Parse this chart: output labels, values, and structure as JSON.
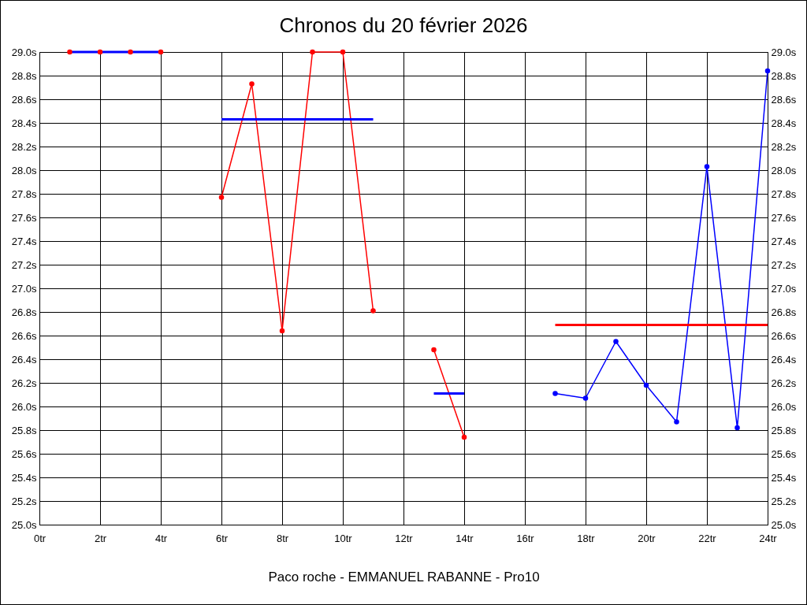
{
  "chart_data": {
    "type": "line",
    "title": "Chronos du 20 février 2026",
    "xlabel": "Paco roche - EMMANUEL RABANNE - Pro10",
    "xlim": [
      0,
      24
    ],
    "xticks": [
      {
        "value": 0,
        "label": "0tr"
      },
      {
        "value": 2,
        "label": "2tr"
      },
      {
        "value": 4,
        "label": "4tr"
      },
      {
        "value": 6,
        "label": "6tr"
      },
      {
        "value": 8,
        "label": "8tr"
      },
      {
        "value": 10,
        "label": "10tr"
      },
      {
        "value": 12,
        "label": "12tr"
      },
      {
        "value": 14,
        "label": "14tr"
      },
      {
        "value": 16,
        "label": "16tr"
      },
      {
        "value": 18,
        "label": "18tr"
      },
      {
        "value": 20,
        "label": "20tr"
      },
      {
        "value": 22,
        "label": "22tr"
      },
      {
        "value": 24,
        "label": "24tr"
      }
    ],
    "ylim": [
      25,
      29
    ],
    "yticks": [
      {
        "value": 25,
        "label": "25.0s"
      },
      {
        "value": 25.2,
        "label": "25.2s"
      },
      {
        "value": 25.4,
        "label": "25.4s"
      },
      {
        "value": 25.6,
        "label": "25.6s"
      },
      {
        "value": 25.8,
        "label": "25.8s"
      },
      {
        "value": 26,
        "label": "26.0s"
      },
      {
        "value": 26.2,
        "label": "26.2s"
      },
      {
        "value": 26.4,
        "label": "26.4s"
      },
      {
        "value": 26.6,
        "label": "26.6s"
      },
      {
        "value": 26.8,
        "label": "26.8s"
      },
      {
        "value": 27,
        "label": "27.0s"
      },
      {
        "value": 27.2,
        "label": "27.2s"
      },
      {
        "value": 27.4,
        "label": "27.4s"
      },
      {
        "value": 27.6,
        "label": "27.6s"
      },
      {
        "value": 27.8,
        "label": "27.8s"
      },
      {
        "value": 28,
        "label": "28.0s"
      },
      {
        "value": 28.2,
        "label": "28.2s"
      },
      {
        "value": 28.4,
        "label": "28.4s"
      },
      {
        "value": 28.6,
        "label": "28.6s"
      },
      {
        "value": 28.8,
        "label": "28.8s"
      },
      {
        "value": 29,
        "label": "29.0s"
      }
    ],
    "y2lim": [
      25,
      29
    ],
    "y2ticks": [
      {
        "value": 25,
        "label": "25.0s"
      },
      {
        "value": 25.2,
        "label": "25.2s"
      },
      {
        "value": 25.4,
        "label": "25.4s"
      },
      {
        "value": 25.6,
        "label": "25.6s"
      },
      {
        "value": 25.8,
        "label": "25.8s"
      },
      {
        "value": 26,
        "label": "26.0s"
      },
      {
        "value": 26.2,
        "label": "26.2s"
      },
      {
        "value": 26.4,
        "label": "26.4s"
      },
      {
        "value": 26.6,
        "label": "26.6s"
      },
      {
        "value": 26.8,
        "label": "26.8s"
      },
      {
        "value": 27,
        "label": "27.0s"
      },
      {
        "value": 27.2,
        "label": "27.2s"
      },
      {
        "value": 27.4,
        "label": "27.4s"
      },
      {
        "value": 27.6,
        "label": "27.6s"
      },
      {
        "value": 27.8,
        "label": "27.8s"
      },
      {
        "value": 28,
        "label": "28.0s"
      },
      {
        "value": 28.2,
        "label": "28.2s"
      },
      {
        "value": 28.4,
        "label": "28.4s"
      },
      {
        "value": 28.6,
        "label": "28.6s"
      },
      {
        "value": 28.8,
        "label": "28.8s"
      },
      {
        "value": 29,
        "label": "29.0s"
      }
    ],
    "grid": true,
    "series": [
      {
        "color": "#0000ff",
        "marker": "none",
        "x": [
          1,
          4
        ],
        "values": [
          29.0,
          29.0
        ]
      },
      {
        "type": "scatter",
        "color": "#ff0000",
        "marker": "circle",
        "x": [
          1,
          2,
          3,
          4
        ],
        "values": [
          29.0,
          29.0,
          29.0,
          29.0
        ]
      },
      {
        "color": "#ff0000",
        "marker": "circle",
        "x": [
          6,
          7,
          8,
          9,
          10,
          11
        ],
        "values": [
          27.77,
          28.73,
          26.64,
          29.0,
          29.0,
          26.81
        ]
      },
      {
        "color": "#0000ff",
        "marker": "none",
        "x": [
          6,
          11
        ],
        "values": [
          28.43,
          28.43
        ]
      },
      {
        "color": "#ff0000",
        "marker": "circle",
        "x": [
          13,
          14
        ],
        "values": [
          26.48,
          25.74
        ]
      },
      {
        "color": "#0000ff",
        "marker": "none",
        "x": [
          13,
          14
        ],
        "values": [
          26.11,
          26.11
        ]
      },
      {
        "color": "#0000ff",
        "marker": "circle",
        "x": [
          17,
          18,
          19,
          20,
          21,
          22,
          23,
          24
        ],
        "values": [
          26.11,
          26.07,
          26.55,
          26.18,
          25.87,
          28.03,
          25.82,
          28.84
        ]
      },
      {
        "color": "#ff0000",
        "marker": "none",
        "x": [
          17,
          24
        ],
        "values": [
          26.69,
          26.69
        ]
      }
    ]
  }
}
